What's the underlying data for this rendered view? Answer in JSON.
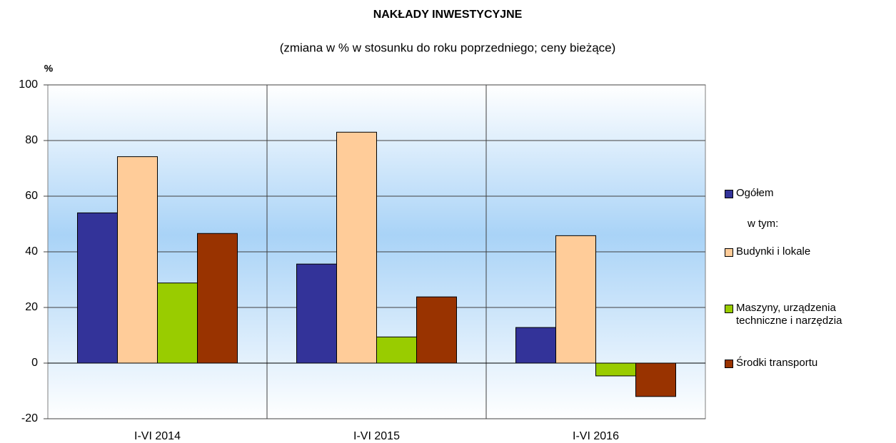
{
  "chart_data": {
    "type": "bar",
    "title": "NAKŁADY  INWESTYCYJNE",
    "subtitle": "(zmiana w % w stosunku do roku poprzedniego; ceny bieżące)",
    "y_label": "%",
    "legend_note": "w tym:",
    "categories": [
      "I-VI 2014",
      "I-VI 2015",
      "I-VI 2016"
    ],
    "series": [
      {
        "name": "Ogółem",
        "color": "#333399",
        "values": [
          54,
          35.6,
          12.8
        ]
      },
      {
        "name": "Budynki i lokale",
        "color": "#ffcc99",
        "values": [
          74.2,
          83,
          45.8
        ]
      },
      {
        "name": "Maszyny, urządzenia\ntechniczne i narzędzia",
        "color": "#99cc00",
        "values": [
          28.8,
          9.4,
          -4.6
        ]
      },
      {
        "name": "Środki transportu",
        "color": "#993300",
        "values": [
          46.6,
          23.8,
          -12
        ]
      }
    ],
    "ylim": [
      -20,
      100
    ],
    "yticks": [
      -20,
      0,
      20,
      40,
      60,
      80,
      100
    ],
    "grid": true
  }
}
